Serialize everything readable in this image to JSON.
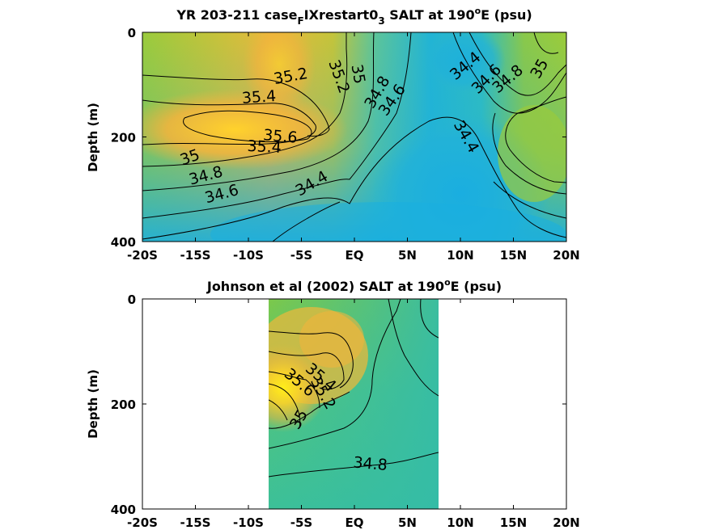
{
  "chart_data": [
    {
      "type": "heatmap",
      "title_prefix": "YR 203-211 case",
      "title_sub": "F",
      "title_mid": "IXrestart0",
      "title_sub2": "3",
      "title_post": " SALT at 190",
      "title_sup": "o",
      "title_end": "E (psu)",
      "ylabel": "Depth (m)",
      "xlim": [
        -20,
        20
      ],
      "ylim": [
        0,
        400
      ],
      "xticks": [
        -20,
        -15,
        -10,
        -5,
        0,
        5,
        10,
        15,
        20
      ],
      "xtick_labels": [
        "-20S",
        "-15S",
        "-10S",
        "-5S",
        "EQ",
        "5N",
        "10N",
        "15N",
        "20N"
      ],
      "yticks": [
        0,
        200,
        400
      ],
      "ytick_labels": [
        "0",
        "200",
        "400"
      ],
      "colormap": [
        "#1aaee0",
        "#3cc0b4",
        "#8cc83c",
        "#f0b43c",
        "#ffe828"
      ],
      "color_range": [
        34.2,
        35.8
      ],
      "contour_labels": [
        {
          "text": "35.2",
          "x": -6.0,
          "y": 85
        },
        {
          "text": "35.4",
          "x": -9.0,
          "y": 125
        },
        {
          "text": "35.6",
          "x": -7.0,
          "y": 200
        },
        {
          "text": "35.4",
          "x": -8.5,
          "y": 220
        },
        {
          "text": "35.2",
          "x": -1.5,
          "y": 85
        },
        {
          "text": "35",
          "x": 0.3,
          "y": 80
        },
        {
          "text": "34.8",
          "x": 2.2,
          "y": 115
        },
        {
          "text": "34.6",
          "x": 3.6,
          "y": 130
        },
        {
          "text": "34.4",
          "x": 10.5,
          "y": 65
        },
        {
          "text": "34.6",
          "x": 12.5,
          "y": 90
        },
        {
          "text": "34.8",
          "x": 14.5,
          "y": 90
        },
        {
          "text": "35",
          "x": 17.5,
          "y": 70
        },
        {
          "text": "34.4",
          "x": 10.5,
          "y": 200
        },
        {
          "text": "35",
          "x": -15.5,
          "y": 240
        },
        {
          "text": "34.8",
          "x": -14.0,
          "y": 275
        },
        {
          "text": "34.6",
          "x": -12.5,
          "y": 310
        },
        {
          "text": "34.4",
          "x": -4.0,
          "y": 290
        }
      ]
    },
    {
      "type": "heatmap",
      "title_prefix": "Johnson et al (2002) SALT at 190",
      "title_sup": "o",
      "title_end": "E (psu)",
      "ylabel": "Depth (m)",
      "xlim": [
        -20,
        20
      ],
      "ylim": [
        0,
        400
      ],
      "data_x_extent": [
        -8,
        8
      ],
      "xticks": [
        -20,
        -15,
        -10,
        -5,
        0,
        5,
        10,
        15,
        20
      ],
      "xtick_labels": [
        "-20S",
        "-15S",
        "-10S",
        "-5S",
        "EQ",
        "5N",
        "10N",
        "15N",
        "20N"
      ],
      "yticks": [
        0,
        200,
        400
      ],
      "ytick_labels": [
        "0",
        "200",
        "400"
      ],
      "colormap": [
        "#1aaee0",
        "#3cc0b4",
        "#8cc83c",
        "#f0b43c",
        "#ffe828"
      ],
      "color_range": [
        34.2,
        35.8
      ],
      "contour_labels": [
        {
          "text": "35.6",
          "x": -5.2,
          "y": 160
        },
        {
          "text": "35.4",
          "x": -3.2,
          "y": 150
        },
        {
          "text": "35.2",
          "x": -3.0,
          "y": 180
        },
        {
          "text": "35",
          "x": -5.2,
          "y": 230
        },
        {
          "text": "34.8",
          "x": 1.5,
          "y": 315
        }
      ]
    }
  ]
}
